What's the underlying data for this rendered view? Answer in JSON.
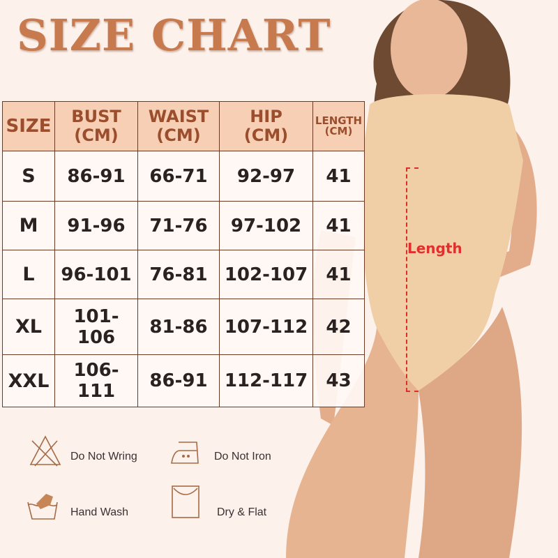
{
  "title": "SIZE CHART",
  "table": {
    "headers": [
      {
        "line1": "SIZE",
        "line2": ""
      },
      {
        "line1": "BUST",
        "line2": "(CM)"
      },
      {
        "line1": "WAIST",
        "line2": "(CM)"
      },
      {
        "line1": "HIP",
        "line2": "(CM)"
      },
      {
        "line1": "LENGTH",
        "line2": "(CM)"
      }
    ],
    "rows": [
      [
        "S",
        "86-91",
        "66-71",
        "92-97",
        "41"
      ],
      [
        "M",
        "91-96",
        "71-76",
        "97-102",
        "41"
      ],
      [
        "L",
        "96-101",
        "76-81",
        "102-107",
        "41"
      ],
      [
        "XL",
        "101-106",
        "81-86",
        "107-112",
        "42"
      ],
      [
        "XXL",
        "106-111",
        "86-91",
        "112-117",
        "43"
      ]
    ]
  },
  "measurement_label": "Length",
  "care": [
    {
      "icon": "do-not-wring-icon",
      "label": "Do Not Wring"
    },
    {
      "icon": "do-not-iron-icon",
      "label": "Do Not Iron"
    },
    {
      "icon": "hand-wash-icon",
      "label": "Hand Wash"
    },
    {
      "icon": "dry-flat-icon",
      "label": "Dry & Flat"
    }
  ],
  "colors": {
    "accent": "#c77a4d",
    "header_bg": "#f7cfb4",
    "background": "#fcf1eb",
    "measure": "#e0302e"
  }
}
